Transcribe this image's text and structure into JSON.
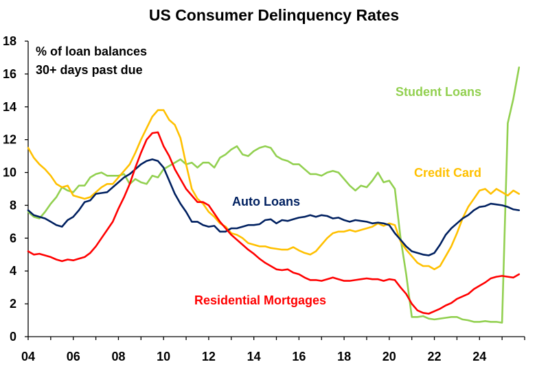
{
  "chart_data": {
    "type": "line",
    "title": "US Consumer Delinquency Rates",
    "annotation": [
      "% of loan balances",
      "30+ days past due"
    ],
    "xlabel": "",
    "ylabel": "",
    "xlim": [
      2004,
      2026
    ],
    "ylim": [
      0,
      18
    ],
    "x_ticks": [
      2004,
      2006,
      2008,
      2010,
      2012,
      2014,
      2016,
      2018,
      2020,
      2022,
      2024
    ],
    "x_tick_labels": [
      "04",
      "06",
      "08",
      "10",
      "12",
      "14",
      "16",
      "18",
      "20",
      "22",
      "24"
    ],
    "y_ticks": [
      0,
      2,
      4,
      6,
      8,
      10,
      12,
      14,
      16,
      18
    ],
    "y_tick_labels": [
      "0",
      "2",
      "4",
      "6",
      "8",
      "10",
      "12",
      "14",
      "16",
      "18"
    ],
    "grid": false,
    "legend": "inline labels",
    "series": [
      {
        "name": "Student Loans",
        "color": "#92D050",
        "x": [
          2004.0,
          2004.25,
          2004.5,
          2004.75,
          2005.0,
          2005.25,
          2005.5,
          2005.75,
          2006.0,
          2006.25,
          2006.5,
          2006.75,
          2007.0,
          2007.25,
          2007.5,
          2007.75,
          2008.0,
          2008.25,
          2008.5,
          2008.75,
          2009.0,
          2009.25,
          2009.5,
          2009.75,
          2010.0,
          2010.25,
          2010.5,
          2010.75,
          2011.0,
          2011.25,
          2011.5,
          2011.75,
          2012.0,
          2012.25,
          2012.5,
          2012.75,
          2013.0,
          2013.25,
          2013.5,
          2013.75,
          2014.0,
          2014.25,
          2014.5,
          2014.75,
          2015.0,
          2015.25,
          2015.5,
          2015.75,
          2016.0,
          2016.25,
          2016.5,
          2016.75,
          2017.0,
          2017.25,
          2017.5,
          2017.75,
          2018.0,
          2018.25,
          2018.5,
          2018.75,
          2019.0,
          2019.25,
          2019.5,
          2019.75,
          2020.0,
          2020.25,
          2020.5,
          2020.75,
          2021.0,
          2021.25,
          2021.5,
          2021.75,
          2022.0,
          2022.25,
          2022.5,
          2022.75,
          2023.0,
          2023.25,
          2023.5,
          2023.75,
          2024.0,
          2024.25,
          2024.5,
          2024.75,
          2025.0,
          2025.25,
          2025.5,
          2025.75
        ],
        "values": [
          7.6,
          7.3,
          7.2,
          7.6,
          8.1,
          8.5,
          9.1,
          8.9,
          8.8,
          9.2,
          9.2,
          9.7,
          9.9,
          10.0,
          9.8,
          9.8,
          9.8,
          9.9,
          9.3,
          9.6,
          9.4,
          9.3,
          9.8,
          9.7,
          10.2,
          10.4,
          10.6,
          10.8,
          10.5,
          10.6,
          10.3,
          10.6,
          10.6,
          10.3,
          10.9,
          11.1,
          11.4,
          11.6,
          11.1,
          11.0,
          11.3,
          11.5,
          11.6,
          11.5,
          11.0,
          10.8,
          10.7,
          10.5,
          10.5,
          10.2,
          9.9,
          9.9,
          9.8,
          10.0,
          10.1,
          10.0,
          9.6,
          9.2,
          8.9,
          9.2,
          9.1,
          9.5,
          10.0,
          9.4,
          9.5,
          9.0,
          6.0,
          3.8,
          1.2,
          1.2,
          1.25,
          1.1,
          1.05,
          1.1,
          1.15,
          1.2,
          1.2,
          1.05,
          1.0,
          0.9,
          0.9,
          0.95,
          0.9,
          0.9,
          0.85,
          13.0,
          14.5,
          16.4
        ]
      },
      {
        "name": "Credit Card",
        "color": "#FFC000",
        "x": [
          2004.0,
          2004.25,
          2004.5,
          2004.75,
          2005.0,
          2005.25,
          2005.5,
          2005.75,
          2006.0,
          2006.25,
          2006.5,
          2006.75,
          2007.0,
          2007.25,
          2007.5,
          2007.75,
          2008.0,
          2008.25,
          2008.5,
          2008.75,
          2009.0,
          2009.25,
          2009.5,
          2009.75,
          2010.0,
          2010.25,
          2010.5,
          2010.75,
          2011.0,
          2011.25,
          2011.5,
          2011.75,
          2012.0,
          2012.25,
          2012.5,
          2012.75,
          2013.0,
          2013.25,
          2013.5,
          2013.75,
          2014.0,
          2014.25,
          2014.5,
          2014.75,
          2015.0,
          2015.25,
          2015.5,
          2015.75,
          2016.0,
          2016.25,
          2016.5,
          2016.75,
          2017.0,
          2017.25,
          2017.5,
          2017.75,
          2018.0,
          2018.25,
          2018.5,
          2018.75,
          2019.0,
          2019.25,
          2019.5,
          2019.75,
          2020.0,
          2020.25,
          2020.5,
          2020.75,
          2021.0,
          2021.25,
          2021.5,
          2021.75,
          2022.0,
          2022.25,
          2022.5,
          2022.75,
          2023.0,
          2023.25,
          2023.5,
          2023.75,
          2024.0,
          2024.25,
          2024.5,
          2024.75,
          2025.0,
          2025.25,
          2025.5,
          2025.75
        ],
        "values": [
          11.5,
          10.9,
          10.5,
          10.2,
          9.8,
          9.3,
          9.1,
          9.2,
          8.6,
          8.5,
          8.4,
          8.5,
          8.8,
          9.1,
          9.3,
          9.3,
          9.7,
          10.1,
          10.5,
          11.2,
          12.0,
          12.7,
          13.4,
          13.8,
          13.8,
          13.2,
          12.9,
          12.1,
          10.5,
          9.0,
          8.4,
          8.1,
          7.6,
          7.3,
          6.9,
          6.7,
          6.3,
          6.2,
          6.0,
          5.7,
          5.6,
          5.5,
          5.5,
          5.4,
          5.35,
          5.3,
          5.3,
          5.45,
          5.25,
          5.1,
          5.0,
          5.2,
          5.6,
          6.0,
          6.3,
          6.4,
          6.4,
          6.5,
          6.4,
          6.5,
          6.6,
          6.7,
          6.9,
          6.75,
          6.9,
          6.8,
          5.8,
          5.3,
          4.9,
          4.5,
          4.3,
          4.3,
          4.1,
          4.3,
          4.9,
          5.5,
          6.3,
          7.2,
          7.9,
          8.4,
          8.9,
          9.0,
          8.7,
          9.0,
          8.8,
          8.6,
          8.9,
          8.7
        ]
      },
      {
        "name": "Auto Loans",
        "color": "#002060",
        "x": [
          2004.0,
          2004.25,
          2004.5,
          2004.75,
          2005.0,
          2005.25,
          2005.5,
          2005.75,
          2006.0,
          2006.25,
          2006.5,
          2006.75,
          2007.0,
          2007.25,
          2007.5,
          2007.75,
          2008.0,
          2008.25,
          2008.5,
          2008.75,
          2009.0,
          2009.25,
          2009.5,
          2009.75,
          2010.0,
          2010.25,
          2010.5,
          2010.75,
          2011.0,
          2011.25,
          2011.5,
          2011.75,
          2012.0,
          2012.25,
          2012.5,
          2012.75,
          2013.0,
          2013.25,
          2013.5,
          2013.75,
          2014.0,
          2014.25,
          2014.5,
          2014.75,
          2015.0,
          2015.25,
          2015.5,
          2015.75,
          2016.0,
          2016.25,
          2016.5,
          2016.75,
          2017.0,
          2017.25,
          2017.5,
          2017.75,
          2018.0,
          2018.25,
          2018.5,
          2018.75,
          2019.0,
          2019.25,
          2019.5,
          2019.75,
          2020.0,
          2020.25,
          2020.5,
          2020.75,
          2021.0,
          2021.25,
          2021.5,
          2021.75,
          2022.0,
          2022.25,
          2022.5,
          2022.75,
          2023.0,
          2023.25,
          2023.5,
          2023.75,
          2024.0,
          2024.25,
          2024.5,
          2024.75,
          2025.0,
          2025.25,
          2025.5,
          2025.75
        ],
        "values": [
          7.7,
          7.4,
          7.3,
          7.2,
          7.0,
          6.8,
          6.7,
          7.1,
          7.3,
          7.7,
          8.2,
          8.3,
          8.7,
          8.75,
          8.8,
          9.1,
          9.4,
          9.7,
          9.9,
          10.2,
          10.5,
          10.7,
          10.8,
          10.7,
          10.3,
          9.5,
          8.7,
          8.1,
          7.6,
          7.0,
          7.0,
          6.8,
          6.7,
          6.75,
          6.4,
          6.4,
          6.6,
          6.6,
          6.7,
          6.8,
          6.8,
          6.85,
          7.1,
          7.15,
          6.9,
          7.1,
          7.05,
          7.15,
          7.25,
          7.3,
          7.4,
          7.3,
          7.4,
          7.35,
          7.2,
          7.25,
          7.1,
          7.0,
          7.1,
          7.05,
          7.0,
          6.9,
          6.95,
          6.9,
          6.8,
          6.3,
          5.9,
          5.5,
          5.2,
          5.1,
          5.0,
          4.95,
          5.1,
          5.6,
          6.2,
          6.6,
          6.9,
          7.2,
          7.4,
          7.7,
          7.9,
          7.95,
          8.1,
          8.05,
          8.0,
          7.9,
          7.75,
          7.7
        ]
      },
      {
        "name": "Residential Mortgages",
        "color": "#FF0000",
        "x": [
          2004.0,
          2004.25,
          2004.5,
          2004.75,
          2005.0,
          2005.25,
          2005.5,
          2005.75,
          2006.0,
          2006.25,
          2006.5,
          2006.75,
          2007.0,
          2007.25,
          2007.5,
          2007.75,
          2008.0,
          2008.25,
          2008.5,
          2008.75,
          2009.0,
          2009.25,
          2009.5,
          2009.75,
          2010.0,
          2010.25,
          2010.5,
          2010.75,
          2011.0,
          2011.25,
          2011.5,
          2011.75,
          2012.0,
          2012.25,
          2012.5,
          2012.75,
          2013.0,
          2013.25,
          2013.5,
          2013.75,
          2014.0,
          2014.25,
          2014.5,
          2014.75,
          2015.0,
          2015.25,
          2015.5,
          2015.75,
          2016.0,
          2016.25,
          2016.5,
          2016.75,
          2017.0,
          2017.25,
          2017.5,
          2017.75,
          2018.0,
          2018.25,
          2018.5,
          2018.75,
          2019.0,
          2019.25,
          2019.5,
          2019.75,
          2020.0,
          2020.25,
          2020.5,
          2020.75,
          2021.0,
          2021.25,
          2021.5,
          2021.75,
          2022.0,
          2022.25,
          2022.5,
          2022.75,
          2023.0,
          2023.25,
          2023.5,
          2023.75,
          2024.0,
          2024.25,
          2024.5,
          2024.75,
          2025.0,
          2025.25,
          2025.5,
          2025.75
        ],
        "values": [
          5.2,
          5.0,
          5.05,
          4.95,
          4.85,
          4.7,
          4.6,
          4.7,
          4.65,
          4.75,
          4.85,
          5.1,
          5.5,
          6.0,
          6.5,
          7.0,
          7.8,
          8.5,
          9.3,
          10.3,
          11.2,
          12.0,
          12.4,
          12.45,
          11.6,
          11.0,
          10.2,
          9.6,
          9.0,
          8.6,
          8.2,
          8.2,
          8.0,
          7.5,
          7.0,
          6.6,
          6.2,
          5.9,
          5.6,
          5.3,
          5.05,
          4.75,
          4.5,
          4.3,
          4.1,
          4.05,
          4.1,
          3.9,
          3.8,
          3.6,
          3.45,
          3.45,
          3.4,
          3.5,
          3.6,
          3.5,
          3.4,
          3.4,
          3.45,
          3.5,
          3.55,
          3.5,
          3.5,
          3.4,
          3.5,
          3.45,
          3.0,
          2.6,
          2.0,
          1.6,
          1.45,
          1.4,
          1.55,
          1.7,
          1.9,
          2.05,
          2.3,
          2.45,
          2.6,
          2.9,
          3.1,
          3.3,
          3.55,
          3.65,
          3.7,
          3.65,
          3.6,
          3.8
        ]
      }
    ],
    "labels": {
      "student": "Student Loans",
      "credit": "Credit Card",
      "auto": "Auto Loans",
      "mortgage": "Residential Mortgages"
    }
  }
}
